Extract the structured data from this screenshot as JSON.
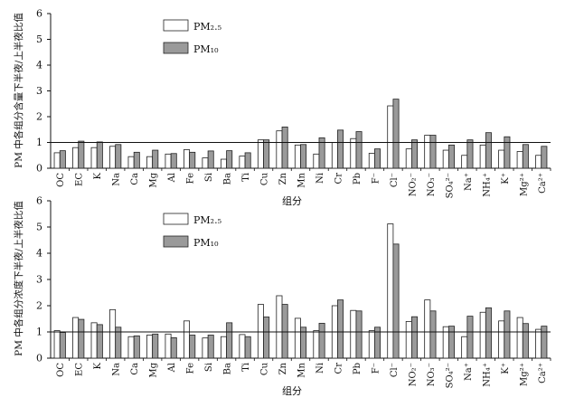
{
  "categories": [
    "OC",
    "EC",
    "K",
    "Na",
    "Ca",
    "Mg",
    "Al",
    "Fe",
    "Si",
    "Ba",
    "Ti",
    "Cu",
    "Zn",
    "Mn",
    "Ni",
    "Cr",
    "Pb",
    "F⁻",
    "Cl⁻",
    "NO₂⁻",
    "NO₃⁻",
    "SO₄²⁻",
    "Na⁺",
    "NH₄⁺",
    "K⁺",
    "Mg²⁺",
    "Ca²⁺"
  ],
  "legend": {
    "pm25": "PM₂.₅",
    "pm10": "PM₁₀"
  },
  "colors": {
    "pm25": "#ffffff",
    "pm10": "#9a9a9a",
    "stroke": "#222222"
  },
  "chart_data": [
    {
      "type": "bar",
      "xlabel": "组分",
      "ylabel": "PM 中各组分含量下半夜/上半夜比值",
      "ylim": [
        0,
        6
      ],
      "yticks": [
        "0",
        "1",
        "2",
        "3",
        "4",
        "5",
        "6"
      ],
      "reference_line": 1,
      "categories": [
        "OC",
        "EC",
        "K",
        "Na",
        "Ca",
        "Mg",
        "Al",
        "Fe",
        "Si",
        "Ba",
        "Ti",
        "Cu",
        "Zn",
        "Mn",
        "Ni",
        "Cr",
        "Pb",
        "F⁻",
        "Cl⁻",
        "NO₂⁻",
        "NO₃⁻",
        "SO₄²⁻",
        "Na⁺",
        "NH₄⁺",
        "K⁺",
        "Mg²⁺",
        "Ca²⁺"
      ],
      "series": [
        {
          "name": "PM₂.₅",
          "values": [
            0.6,
            0.8,
            0.8,
            0.85,
            0.45,
            0.45,
            0.55,
            0.72,
            0.4,
            0.35,
            0.47,
            1.1,
            1.45,
            0.9,
            0.55,
            1.0,
            1.15,
            0.58,
            2.42,
            0.75,
            1.28,
            0.7,
            0.5,
            0.9,
            0.7,
            0.65,
            0.5
          ]
        },
        {
          "name": "PM₁₀",
          "values": [
            0.68,
            1.05,
            1.02,
            0.92,
            0.62,
            0.7,
            0.57,
            0.62,
            0.67,
            0.68,
            0.6,
            1.1,
            1.6,
            0.92,
            1.18,
            1.48,
            1.42,
            0.75,
            2.68,
            1.1,
            1.28,
            0.9,
            1.1,
            1.38,
            1.22,
            0.92,
            0.85
          ]
        }
      ]
    },
    {
      "type": "bar",
      "xlabel": "组分",
      "ylabel": "PM 中各组分浓度下半夜/上半夜比值",
      "ylim": [
        0,
        6
      ],
      "yticks": [
        "0",
        "1",
        "2",
        "3",
        "4",
        "5",
        "6"
      ],
      "reference_line": 1,
      "categories": [
        "OC",
        "EC",
        "K",
        "Na",
        "Ca",
        "Mg",
        "Al",
        "Fe",
        "Si",
        "Ba",
        "Ti",
        "Cu",
        "Zn",
        "Mn",
        "Ni",
        "Cr",
        "Pb",
        "F⁻",
        "Cl⁻",
        "NO₂⁻",
        "NO₃⁻",
        "SO₄²⁻",
        "Na⁺",
        "NH₄⁺",
        "K⁺",
        "Mg²⁺",
        "Ca²⁺"
      ],
      "series": [
        {
          "name": "PM₂.₅",
          "values": [
            1.05,
            1.55,
            1.35,
            1.85,
            0.82,
            0.88,
            0.92,
            1.42,
            0.77,
            0.82,
            0.9,
            2.05,
            2.38,
            1.52,
            1.05,
            2.0,
            1.82,
            1.05,
            5.12,
            1.4,
            2.22,
            1.2,
            0.82,
            1.75,
            1.42,
            1.55,
            1.1
          ]
        },
        {
          "name": "PM₁₀",
          "values": [
            0.98,
            1.48,
            1.28,
            1.18,
            0.85,
            0.92,
            0.78,
            0.88,
            0.88,
            1.35,
            0.82,
            1.57,
            2.05,
            1.18,
            1.33,
            2.22,
            1.8,
            1.18,
            4.35,
            1.58,
            1.8,
            1.22,
            1.6,
            1.92,
            1.8,
            1.32,
            1.22
          ]
        }
      ]
    }
  ]
}
